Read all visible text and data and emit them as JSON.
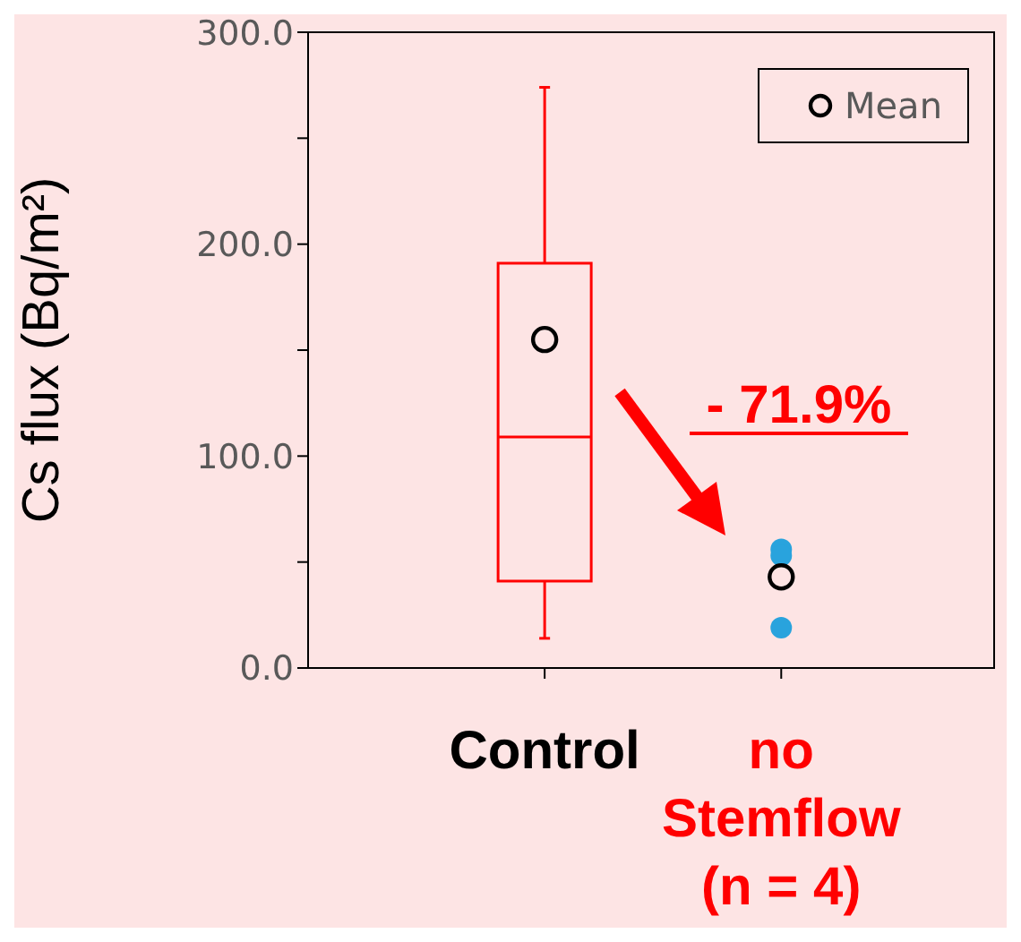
{
  "chart_data": {
    "type": "box",
    "ylabel": "Cs flux (Bq/m²)",
    "categories": [
      "Control",
      "no Stemflow (n = 4)"
    ],
    "color": "#ff0000",
    "boxes": [
      {
        "low": 14,
        "q1": 41,
        "median": 109,
        "q3": 191,
        "high": 274
      },
      null
    ],
    "series": [
      {
        "type": "scatter",
        "color": "#29a3dd",
        "x": [
          "no Stemflow (n = 4)",
          "no Stemflow (n = 4)",
          "no Stemflow (n = 4)"
        ],
        "values": [
          56,
          53,
          19
        ]
      },
      {
        "type": "scatter",
        "name": "Mean",
        "color": "#000000",
        "x": [
          "Control",
          "no Stemflow (n = 4)"
        ],
        "values": [
          155,
          43
        ]
      }
    ],
    "ylim": [
      0,
      300
    ],
    "yticks": [
      {
        "value": 0,
        "label": "0.0"
      },
      {
        "value": 50,
        "label": null
      },
      {
        "value": 100,
        "label": "100.0"
      },
      {
        "value": 150,
        "label": null
      },
      {
        "value": 200,
        "label": "200.0"
      },
      {
        "value": 250,
        "label": null
      },
      {
        "value": 300,
        "label": "300.0"
      }
    ],
    "marker": "circle",
    "legend": "top right",
    "annotations": [
      "- 71.9%"
    ]
  }
}
